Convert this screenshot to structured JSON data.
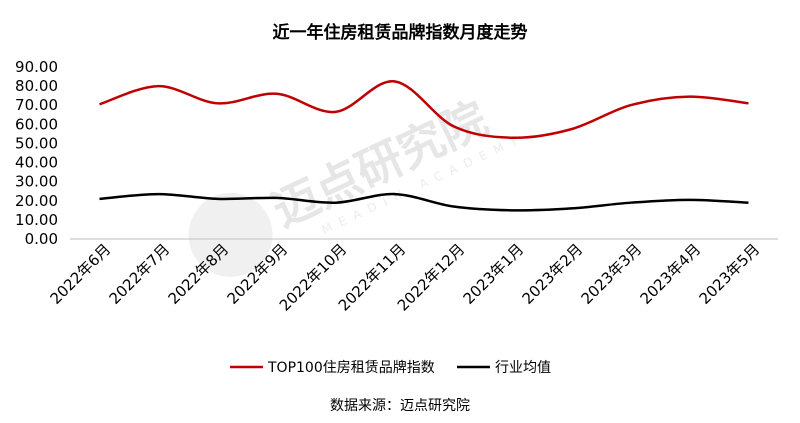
{
  "chart_data": {
    "type": "line",
    "title": "近一年住房租赁品牌指数月度走势",
    "categories": [
      "2022年6月",
      "2022年7月",
      "2022年8月",
      "2022年9月",
      "2022年10月",
      "2022年11月",
      "2022年12月",
      "2023年1月",
      "2023年2月",
      "2023年3月",
      "2023年4月",
      "2023年5月"
    ],
    "series": [
      {
        "name": "TOP100住房租赁品牌指数",
        "color": "#c00000",
        "values": [
          70.5,
          80.0,
          71.0,
          76.0,
          66.5,
          82.5,
          59.0,
          53.0,
          57.5,
          70.0,
          74.5,
          71.0
        ]
      },
      {
        "name": "行业均值",
        "color": "#000000",
        "values": [
          21.0,
          23.5,
          21.0,
          21.5,
          19.0,
          23.5,
          17.0,
          15.0,
          16.0,
          19.0,
          20.5,
          19.0
        ]
      }
    ],
    "ylim": [
      0,
      90
    ],
    "yticks": [
      "0.00",
      "10.00",
      "20.00",
      "30.00",
      "40.00",
      "50.00",
      "60.00",
      "70.00",
      "80.00",
      "90.00"
    ],
    "grid": false,
    "legend_position": "bottom"
  },
  "source": "数据来源：迈点研究院",
  "watermark": {
    "main": "迈点研究院",
    "sub": "MEADIN ACADEMY"
  }
}
